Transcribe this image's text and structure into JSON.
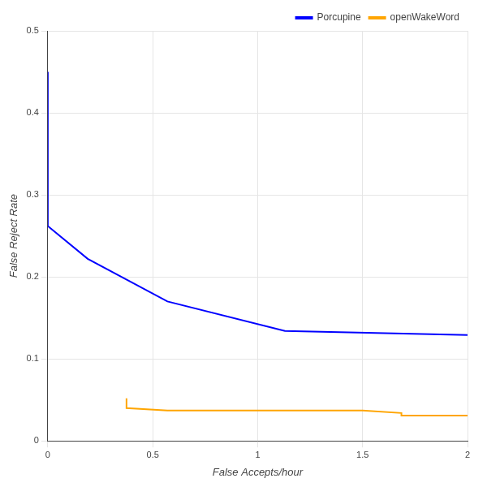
{
  "chart_data": {
    "type": "line",
    "x_label": "False Accepts/hour",
    "y_label": "False Reject Rate",
    "series": [
      {
        "name": "Porcupine",
        "color": "#0000ff",
        "marker": "none",
        "x": [
          0,
          0,
          0.19,
          0.57,
          1.13,
          2
        ],
        "values": [
          0.45,
          0.262,
          0.222,
          0.17,
          0.134,
          0.129
        ]
      },
      {
        "name": "openWakeWord",
        "color": "#ffa500",
        "marker": "none",
        "x": [
          0.375,
          0.375,
          0.57,
          1.5,
          1.685,
          1.685,
          2
        ],
        "values": [
          0.052,
          0.04,
          0.037,
          0.037,
          0.034,
          0.031,
          0.031
        ]
      }
    ],
    "xlim": [
      0,
      2
    ],
    "xticks": [
      0,
      0.5,
      1,
      1.5,
      2
    ],
    "ylim": [
      0,
      0.5
    ],
    "yticks": [
      0,
      0.1,
      0.2,
      0.3,
      0.4,
      0.5
    ],
    "grid": true,
    "legend": "upper right"
  }
}
